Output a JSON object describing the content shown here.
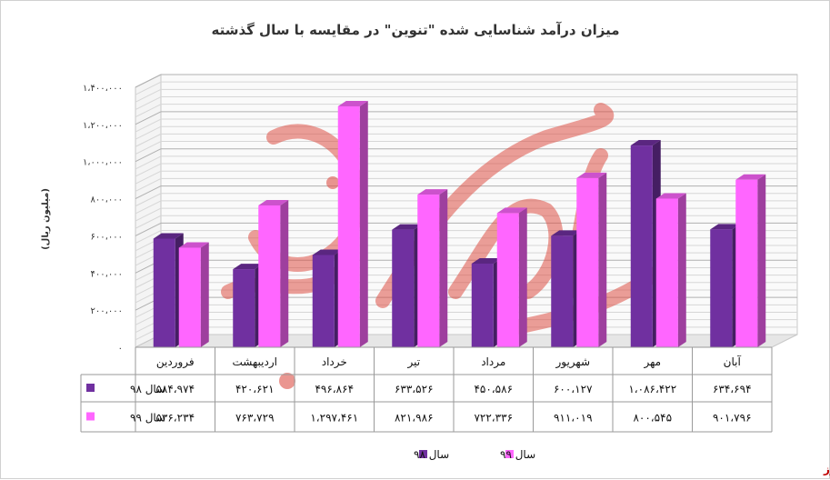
{
  "chart_data": {
    "type": "bar",
    "title": "میزان درآمد شناسایی شده \"تنوین\" در مقایسه با سال گذشته",
    "ylabel": "(میلیون ریال)",
    "ylim": [
      0,
      1400000
    ],
    "yticks": [
      "۰",
      "۲۰۰،۰۰۰",
      "۴۰۰،۰۰۰",
      "۶۰۰،۰۰۰",
      "۸۰۰،۰۰۰",
      "۱،۰۰۰،۰۰۰",
      "۱،۲۰۰،۰۰۰",
      "۱،۴۰۰،۰۰۰"
    ],
    "categories": [
      "فروردین",
      "اردیبهشت",
      "خرداد",
      "تیر",
      "مرداد",
      "شهریور",
      "مهر",
      "آبان"
    ],
    "series": [
      {
        "name": "سال ۹۸",
        "color": "#7030A0",
        "values": [
          584974,
          420621,
          496864,
          633526,
          450586,
          600127,
          1086422,
          634694
        ],
        "labels": [
          "۵۸۴،۹۷۴",
          "۴۲۰،۶۲۱",
          "۴۹۶،۸۶۴",
          "۶۳۳،۵۲۶",
          "۴۵۰،۵۸۶",
          "۶۰۰،۱۲۷",
          "۱،۰۸۶،۴۲۲",
          "۶۳۴،۶۹۴"
        ]
      },
      {
        "name": "سال ۹۹",
        "color": "#FF66FF",
        "values": [
          536234,
          763729,
          1297461,
          821986,
          722336,
          911019,
          800545,
          901796
        ],
        "labels": [
          "۵۳۶،۲۳۴",
          "۷۶۳،۷۲۹",
          "۱،۲۹۷،۴۶۱",
          "۸۲۱،۹۸۶",
          "۷۲۲،۳۳۶",
          "۹۱۱،۰۱۹",
          "۸۰۰،۵۴۵",
          "۹۰۱،۷۹۶"
        ]
      }
    ],
    "legend_position": "bottom",
    "grid": true
  },
  "brand": "بورس نیوز"
}
